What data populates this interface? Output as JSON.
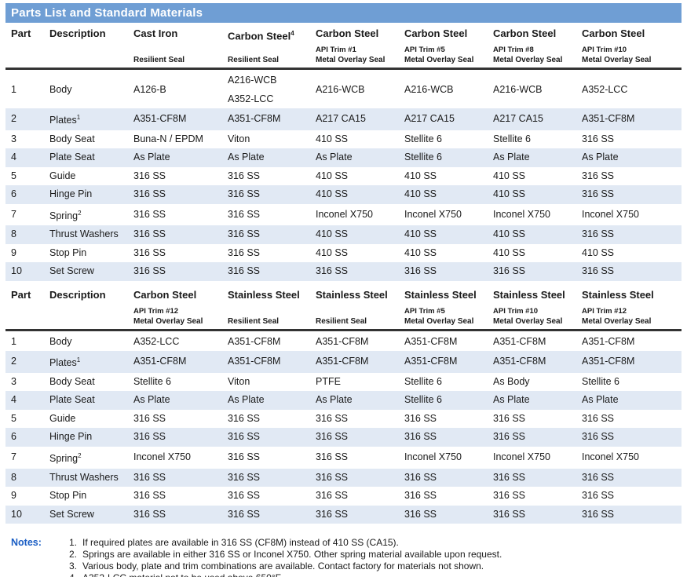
{
  "title_bar": {
    "title": "Parts List and Standard Materials"
  },
  "colors": {
    "title_bg": "#6F9ED4",
    "title_text": "#FFFFFF",
    "stripe": "#E1E9F4",
    "header_rule": "#333333",
    "notes_label": "#1B5EC4",
    "body_text": "#1A1A1A"
  },
  "table1": {
    "columns": [
      {
        "name": "Part",
        "sup": "",
        "trim": "",
        "seal": ""
      },
      {
        "name": "Description",
        "sup": "",
        "trim": "",
        "seal": ""
      },
      {
        "name": "Cast Iron",
        "sup": "",
        "trim": "",
        "seal": "Resilient Seal"
      },
      {
        "name": "Carbon Steel",
        "sup": "4",
        "trim": "",
        "seal": "Resilient Seal"
      },
      {
        "name": "Carbon Steel",
        "sup": "",
        "trim": "API Trim #1",
        "seal": "Metal Overlay Seal"
      },
      {
        "name": "Carbon Steel",
        "sup": "",
        "trim": "API Trim #5",
        "seal": "Metal Overlay Seal"
      },
      {
        "name": "Carbon Steel",
        "sup": "",
        "trim": "API Trim #8",
        "seal": "Metal Overlay Seal"
      },
      {
        "name": "Carbon Steel",
        "sup": "",
        "trim": "API Trim #10",
        "seal": "Metal Overlay Seal"
      }
    ],
    "rows": [
      {
        "part": "1",
        "desc": "Body",
        "desc_sup": "",
        "values": [
          "A126-B",
          "A216-WCB\nA352-LCC",
          "A216-WCB",
          "A216-WCB",
          "A216-WCB",
          "A352-LCC"
        ]
      },
      {
        "part": "2",
        "desc": "Plates",
        "desc_sup": "1",
        "values": [
          "A351-CF8M",
          "A351-CF8M",
          "A217 CA15",
          "A217 CA15",
          "A217 CA15",
          "A351-CF8M"
        ]
      },
      {
        "part": "3",
        "desc": "Body Seat",
        "desc_sup": "",
        "values": [
          "Buna-N / EPDM",
          "Viton",
          "410 SS",
          "Stellite 6",
          "Stellite 6",
          "316 SS"
        ]
      },
      {
        "part": "4",
        "desc": "Plate Seat",
        "desc_sup": "",
        "values": [
          "As Plate",
          "As Plate",
          "As Plate",
          "Stellite 6",
          "As Plate",
          "As Plate"
        ]
      },
      {
        "part": "5",
        "desc": "Guide",
        "desc_sup": "",
        "values": [
          "316 SS",
          "316 SS",
          "410 SS",
          "410 SS",
          "410 SS",
          "316 SS"
        ]
      },
      {
        "part": "6",
        "desc": "Hinge Pin",
        "desc_sup": "",
        "values": [
          "316 SS",
          "316 SS",
          "410 SS",
          "410 SS",
          "410 SS",
          "316 SS"
        ]
      },
      {
        "part": "7",
        "desc": "Spring",
        "desc_sup": "2",
        "values": [
          "316 SS",
          "316 SS",
          "Inconel X750",
          "Inconel X750",
          "Inconel X750",
          "Inconel X750"
        ]
      },
      {
        "part": "8",
        "desc": "Thrust Washers",
        "desc_sup": "",
        "values": [
          "316 SS",
          "316 SS",
          "410 SS",
          "410 SS",
          "410 SS",
          "316 SS"
        ]
      },
      {
        "part": "9",
        "desc": "Stop Pin",
        "desc_sup": "",
        "values": [
          "316 SS",
          "316 SS",
          "410 SS",
          "410 SS",
          "410 SS",
          "410 SS"
        ]
      },
      {
        "part": "10",
        "desc": "Set Screw",
        "desc_sup": "",
        "values": [
          "316 SS",
          "316 SS",
          "316 SS",
          "316 SS",
          "316 SS",
          "316 SS"
        ]
      }
    ]
  },
  "table2": {
    "columns": [
      {
        "name": "Part",
        "sup": "",
        "trim": "",
        "seal": ""
      },
      {
        "name": "Description",
        "sup": "",
        "trim": "",
        "seal": ""
      },
      {
        "name": "Carbon Steel",
        "sup": "",
        "trim": "API Trim #12",
        "seal": "Metal Overlay Seal"
      },
      {
        "name": "Stainless Steel",
        "sup": "",
        "trim": "",
        "seal": "Resilient Seal"
      },
      {
        "name": "Stainless Steel",
        "sup": "",
        "trim": "",
        "seal": "Resilient Seal"
      },
      {
        "name": "Stainless Steel",
        "sup": "",
        "trim": "API Trim #5",
        "seal": "Metal Overlay Seal"
      },
      {
        "name": "Stainless Steel",
        "sup": "",
        "trim": "API Trim #10",
        "seal": "Metal Overlay Seal"
      },
      {
        "name": "Stainless Steel",
        "sup": "",
        "trim": "API Trim #12",
        "seal": "Metal Overlay Seal"
      }
    ],
    "rows": [
      {
        "part": "1",
        "desc": "Body",
        "desc_sup": "",
        "values": [
          "A352-LCC",
          "A351-CF8M",
          "A351-CF8M",
          "A351-CF8M",
          "A351-CF8M",
          "A351-CF8M"
        ]
      },
      {
        "part": "2",
        "desc": "Plates",
        "desc_sup": "1",
        "values": [
          "A351-CF8M",
          "A351-CF8M",
          "A351-CF8M",
          "A351-CF8M",
          "A351-CF8M",
          "A351-CF8M"
        ]
      },
      {
        "part": "3",
        "desc": "Body Seat",
        "desc_sup": "",
        "values": [
          "Stellite 6",
          "Viton",
          "PTFE",
          "Stellite 6",
          "As Body",
          "Stellite 6"
        ]
      },
      {
        "part": "4",
        "desc": "Plate Seat",
        "desc_sup": "",
        "values": [
          "As Plate",
          "As Plate",
          "As Plate",
          "Stellite 6",
          "As Plate",
          "As Plate"
        ]
      },
      {
        "part": "5",
        "desc": "Guide",
        "desc_sup": "",
        "values": [
          "316 SS",
          "316 SS",
          "316 SS",
          "316 SS",
          "316 SS",
          "316 SS"
        ]
      },
      {
        "part": "6",
        "desc": "Hinge Pin",
        "desc_sup": "",
        "values": [
          "316 SS",
          "316 SS",
          "316 SS",
          "316 SS",
          "316 SS",
          "316 SS"
        ]
      },
      {
        "part": "7",
        "desc": "Spring",
        "desc_sup": "2",
        "values": [
          "Inconel X750",
          "316 SS",
          "316 SS",
          "Inconel X750",
          "Inconel X750",
          "Inconel X750"
        ]
      },
      {
        "part": "8",
        "desc": "Thrust Washers",
        "desc_sup": "",
        "values": [
          "316 SS",
          "316 SS",
          "316 SS",
          "316 SS",
          "316 SS",
          "316 SS"
        ]
      },
      {
        "part": "9",
        "desc": "Stop Pin",
        "desc_sup": "",
        "values": [
          "316 SS",
          "316 SS",
          "316 SS",
          "316 SS",
          "316 SS",
          "316 SS"
        ]
      },
      {
        "part": "10",
        "desc": "Set Screw",
        "desc_sup": "",
        "values": [
          "316 SS",
          "316 SS",
          "316 SS",
          "316 SS",
          "316 SS",
          "316 SS"
        ]
      }
    ]
  },
  "notes": {
    "label": "Notes:",
    "items": [
      "If required plates are available in 316 SS (CF8M) instead of 410 SS (CA15).",
      "Springs are available in either 316 SS or Inconel X750. Other spring material available upon request.",
      "Various body, plate and trim combinations are available. Contact factory for materials not shown.",
      "A352-LCC material not to be used above 650°F."
    ]
  }
}
